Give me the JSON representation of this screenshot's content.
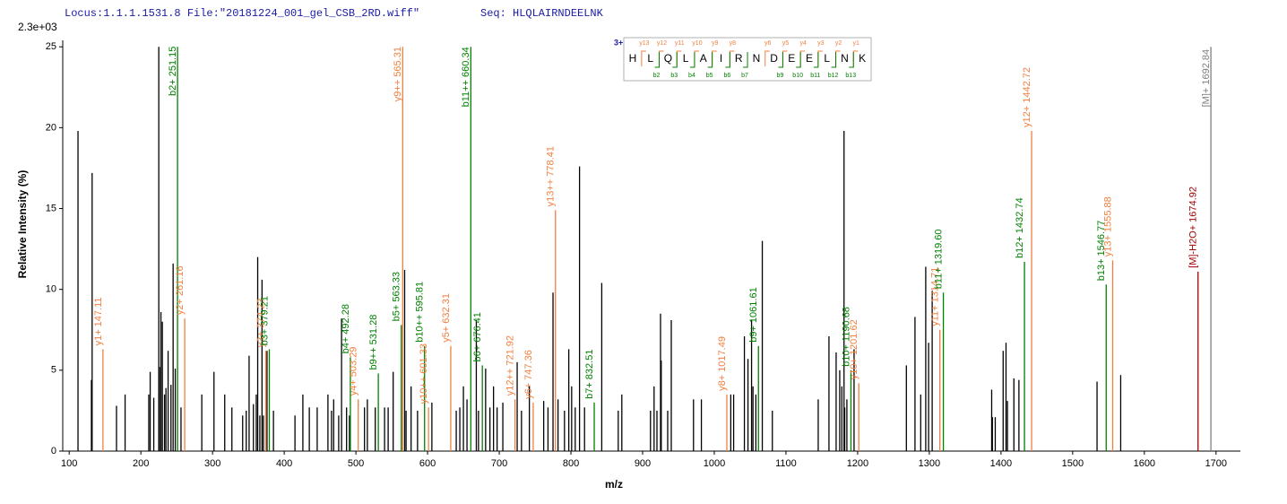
{
  "chart_data": {
    "type": "spectrum",
    "header": "Locus:1.1.1.1531.8 File:\"20181224_001_gel_CSB_2RD.wiff\"",
    "sequence_label": "Seq: HLQLAIRNDEELNK",
    "scale_label": "2.3e+03",
    "xlabel": "m/z",
    "ylabel": "Relative  Intensity (%)",
    "xlim": [
      91,
      1734
    ],
    "ylim": [
      0,
      25.4
    ],
    "xticks": [
      100,
      200,
      300,
      400,
      500,
      600,
      700,
      800,
      900,
      1000,
      1100,
      1200,
      1300,
      1400,
      1500,
      1600,
      1700
    ],
    "yticks": [
      0,
      5,
      10,
      15,
      20,
      25
    ],
    "peaks": {
      "color": "#000000",
      "x": [
        112.3,
        131,
        132,
        166,
        178,
        211,
        213,
        218,
        225,
        226,
        228,
        230,
        233,
        235,
        238,
        242,
        245,
        248,
        256,
        285,
        302,
        317,
        327,
        342,
        347,
        351,
        357,
        361,
        363,
        366,
        369,
        371,
        376,
        385,
        415,
        426,
        435,
        446,
        461,
        466,
        469,
        476,
        480,
        487,
        491,
        512,
        516,
        527,
        540,
        545,
        552,
        568,
        570,
        577,
        586,
        606,
        640,
        645,
        650,
        655,
        668,
        671,
        681,
        687,
        692,
        697,
        705,
        725,
        731,
        742,
        762,
        768,
        775,
        782,
        791,
        797,
        801,
        806,
        812,
        819,
        843,
        866,
        871,
        911,
        916,
        920,
        925,
        926,
        935,
        940,
        971,
        982,
        1023,
        1027,
        1042,
        1047,
        1052,
        1054,
        1058,
        1067,
        1081,
        1145,
        1160,
        1170,
        1175,
        1178,
        1181,
        1182,
        1185,
        1195,
        1268,
        1280,
        1288,
        1295,
        1299,
        1304,
        1387,
        1388,
        1392,
        1403,
        1407,
        1409,
        1418,
        1425,
        1534,
        1567
      ],
      "values": [
        19.8,
        4.4,
        17.2,
        2.8,
        3.5,
        3.5,
        4.9,
        3.3,
        25,
        5.2,
        8.6,
        8.0,
        3.5,
        3.9,
        6.2,
        4.1,
        11.6,
        5.1,
        2.7,
        3.5,
        4.9,
        3.5,
        2.7,
        2.2,
        2.5,
        5.9,
        2.9,
        3.5,
        12.0,
        2.2,
        10.6,
        2.2,
        6.2,
        2.5,
        2.2,
        3.5,
        2.7,
        2.7,
        3.5,
        2.5,
        3.2,
        2.2,
        8.2,
        2.7,
        2.2,
        2.7,
        3.2,
        2.7,
        2.7,
        2.7,
        4.9,
        11.2,
        2.5,
        4.0,
        2.5,
        3.0,
        2.5,
        2.7,
        4.0,
        3.2,
        8.1,
        2.5,
        5.1,
        2.7,
        4.0,
        2.7,
        3.0,
        5.5,
        2.5,
        4.0,
        3.1,
        2.7,
        9.8,
        3.2,
        2.5,
        6.3,
        4.0,
        2.7,
        17.6,
        2.7,
        10.4,
        2.5,
        3.5,
        2.5,
        4.0,
        2.5,
        8.5,
        5.6,
        2.5,
        8.1,
        3.2,
        3.2,
        3.5,
        3.5,
        7.1,
        5.7,
        8.1,
        4.0,
        3.5,
        13.0,
        2.5,
        3.2,
        7.1,
        6.1,
        5.0,
        4.0,
        19.8,
        2.7,
        3.2,
        6.3,
        5.3,
        8.3,
        3.5,
        11.4,
        6.7,
        9.9,
        3.8,
        2.1,
        2.1,
        6.2,
        6.7,
        3.1,
        4.5,
        4.4,
        4.3,
        4.7
      ]
    },
    "annotated_peaks": [
      {
        "label": "y1+ 147.11",
        "x": 147.11,
        "value": 6.3,
        "color": "#f08040"
      },
      {
        "label": "b2+ 251.15",
        "x": 251.15,
        "value": 25,
        "color": "#008000"
      },
      {
        "label": "y2+ 261.16",
        "x": 261.16,
        "value": 8.2,
        "color": "#f08040"
      },
      {
        "label": "y3+ 374.23",
        "x": 374.23,
        "value": 6.2,
        "color": "#f08040"
      },
      {
        "label": "b3+ 379.21",
        "x": 379.21,
        "value": 6.3,
        "color": "#008000"
      },
      {
        "label": "b4+ 492.28",
        "x": 492.28,
        "value": 5.8,
        "color": "#008000"
      },
      {
        "label": "y4+ 503.29",
        "x": 503.29,
        "value": 3.2,
        "color": "#f08040"
      },
      {
        "label": "b9++ 531.28",
        "x": 531.28,
        "value": 4.8,
        "color": "#008000"
      },
      {
        "label": "b5+ 563.33",
        "x": 563.33,
        "value": 7.8,
        "color": "#008000"
      },
      {
        "label": "y9++ 565.31",
        "x": 565.31,
        "value": 25,
        "color": "#f08040"
      },
      {
        "label": "b10++ 595.81",
        "x": 595.81,
        "value": 6.5,
        "color": "#008000"
      },
      {
        "label": "y10++ 601.33",
        "x": 601.33,
        "value": 2.7,
        "color": "#f08040"
      },
      {
        "label": "y5+ 632.31",
        "x": 632.31,
        "value": 6.5,
        "color": "#f08040"
      },
      {
        "label": "b11++ 660.34",
        "x": 660.34,
        "value": 25,
        "color": "#008000"
      },
      {
        "label": "b6+ 676.41",
        "x": 676.41,
        "value": 5.3,
        "color": "#008000"
      },
      {
        "label": "y12++ 721.92",
        "x": 721.92,
        "value": 3.2,
        "color": "#f08040"
      },
      {
        "label": "y6+ 747.36",
        "x": 747.36,
        "value": 3.0,
        "color": "#f08040"
      },
      {
        "label": "y13++ 778.41",
        "x": 778.41,
        "value": 14.9,
        "color": "#f08040"
      },
      {
        "label": "b7+ 832.51",
        "x": 832.51,
        "value": 3.0,
        "color": "#008000"
      },
      {
        "label": "y8+ 1017.49",
        "x": 1017.49,
        "value": 3.5,
        "color": "#f08040"
      },
      {
        "label": "b9+ 1061.61",
        "x": 1061.61,
        "value": 6.5,
        "color": "#008000"
      },
      {
        "label": "b10+ 1190.68",
        "x": 1190.68,
        "value": 5.0,
        "color": "#008000"
      },
      {
        "label": "y10+ 1201.62",
        "x": 1201.62,
        "value": 4.2,
        "color": "#f08040"
      },
      {
        "label": "y11+ 1314.71",
        "x": 1314.71,
        "value": 7.5,
        "color": "#f08040"
      },
      {
        "label": "b11+ 1319.60",
        "x": 1319.6,
        "value": 9.8,
        "color": "#008000"
      },
      {
        "label": "b12+ 1432.74",
        "x": 1432.74,
        "value": 11.7,
        "color": "#008000"
      },
      {
        "label": "y12+ 1442.72",
        "x": 1442.72,
        "value": 19.8,
        "color": "#f08040"
      },
      {
        "label": "b13+ 1546.77",
        "x": 1546.77,
        "value": 10.3,
        "color": "#008000"
      },
      {
        "label": "y13+ 1555.88",
        "x": 1555.88,
        "value": 11.8,
        "color": "#f08040"
      },
      {
        "label": "[M]-H2O+ 1674.92",
        "x": 1674.92,
        "value": 11.1,
        "color": "#a00000"
      },
      {
        "label": "[M]+ 1692.84",
        "x": 1692.84,
        "value": 25,
        "color": "#808080"
      }
    ],
    "ladder": {
      "charge": "3+",
      "residues": [
        "H",
        "L",
        "Q",
        "L",
        "A",
        "I",
        "R",
        "N",
        "D",
        "E",
        "E",
        "L",
        "N",
        "K"
      ],
      "y_ions": [
        "y13",
        "y12",
        "y11",
        "y10",
        "y9",
        "y8",
        null,
        "y6",
        "y5",
        "y4",
        "y3",
        "y2",
        "y1"
      ],
      "b_ions": [
        null,
        "b2",
        "b3",
        "b4",
        "b5",
        "b6",
        "b7",
        null,
        "b9",
        "b10",
        "b11",
        "b12",
        "b13"
      ],
      "y_color": "#f08040",
      "b_color": "#008000"
    }
  }
}
